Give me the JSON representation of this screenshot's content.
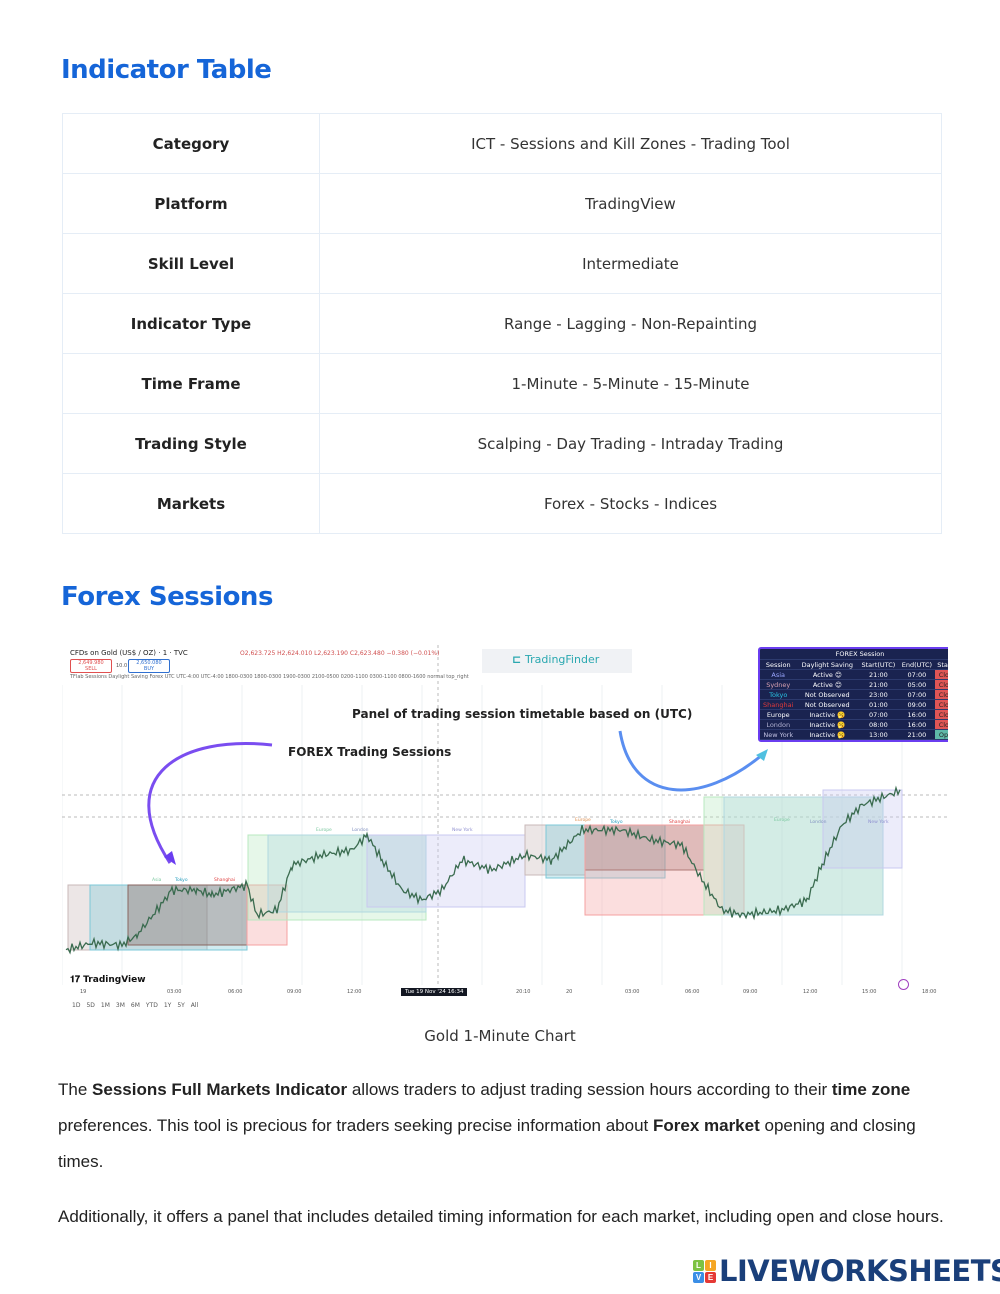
{
  "sections": {
    "indicator_table_title": "Indicator Table",
    "forex_sessions_title": "Forex Sessions"
  },
  "indicator_table": [
    {
      "label": "Category",
      "value": "ICT - Sessions and Kill Zones - Trading Tool"
    },
    {
      "label": "Platform",
      "value": "TradingView"
    },
    {
      "label": "Skill Level",
      "value": "Intermediate"
    },
    {
      "label": "Indicator Type",
      "value": "Range - Lagging - Non-Repainting"
    },
    {
      "label": "Time Frame",
      "value": "1-Minute - 5-Minute - 15-Minute"
    },
    {
      "label": "Trading Style",
      "value": "Scalping - Day Trading - Intraday Trading"
    },
    {
      "label": "Markets",
      "value": "Forex - Stocks - Indices"
    }
  ],
  "chart": {
    "symbol": "CFDs on Gold (US$ / OZ) · 1 · TVC",
    "ohlc": "O2,623.725 H2,624.010 L2,623.190 C2,623.480 −0.380 (−0.01%)",
    "sell": "2,649.980",
    "sell_label": "SELL",
    "spread": "10.0",
    "buy": "2,650.080",
    "buy_label": "BUY",
    "indicator_line": "TFlab Sessions Daylight Saving Forex UTC UTC-4:00 UTC-4:00 1800-0300 1800-0300 1900-0300 2100-0500 0200-1100 0300-1100 0800-1600 normal top_right",
    "watermark": "TradingFinder",
    "annotation_panel": "Panel of trading session timetable based on (UTC)",
    "annotation_sessions": "FOREX Trading Sessions",
    "tv_logo": "TradingView",
    "crosshair_time": "Tue 19 Nov '24  16:34",
    "x_ticks": [
      "19",
      "03:00",
      "06:00",
      "09:00",
      "12:00",
      "",
      "20:10",
      "20",
      "03:00",
      "06:00",
      "09:00",
      "12:00",
      "15:00",
      "18:00"
    ],
    "ranges": [
      "1D",
      "5D",
      "1M",
      "3M",
      "6M",
      "YTD",
      "1Y",
      "5Y",
      "All"
    ],
    "session_labels": [
      "Asia",
      "Tokyo",
      "Shanghai",
      "Europe",
      "London",
      "New York"
    ],
    "panel": {
      "title": "FOREX Session",
      "headers": [
        "Session",
        "Daylight Saving",
        "Start(UTC)",
        "End(UTC)",
        "Status"
      ],
      "rows": [
        {
          "session": "Asia",
          "dst": "Active 😊",
          "start": "21:00",
          "end": "07:00",
          "status": "Close",
          "color": "#9aa6ff"
        },
        {
          "session": "Sydney",
          "dst": "Active 😊",
          "start": "21:00",
          "end": "05:00",
          "status": "Close",
          "color": "#d6a0b0"
        },
        {
          "session": "Tokyo",
          "dst": "Not Observed",
          "start": "23:00",
          "end": "07:00",
          "status": "Close",
          "color": "#28c0e0"
        },
        {
          "session": "Shanghai",
          "dst": "Not Observed",
          "start": "01:00",
          "end": "09:00",
          "status": "Close",
          "color": "#e03a3a"
        },
        {
          "session": "Europe",
          "dst": "Inactive 🥱",
          "start": "07:00",
          "end": "16:00",
          "status": "Close",
          "color": "#ffffff"
        },
        {
          "session": "London",
          "dst": "Inactive 🥱",
          "start": "08:00",
          "end": "16:00",
          "status": "Close",
          "color": "#b0b0d0"
        },
        {
          "session": "New York",
          "dst": "Inactive 🥱",
          "start": "13:00",
          "end": "21:00",
          "status": "Open",
          "color": "#c0c0e0"
        }
      ],
      "close_color": "#e05555",
      "open_color": "#5fb8a8"
    }
  },
  "caption": "Gold 1-Minute Chart",
  "paragraph1": {
    "t1": "The ",
    "b1": "Sessions Full Markets Indicator",
    "t2": " allows traders to adjust trading session hours according to their ",
    "b2": "time zone",
    "t3": " preferences. This tool is precious for traders seeking precise information about ",
    "b3": "Forex market",
    "t4": " opening and closing times."
  },
  "paragraph2": "Additionally, it offers a panel that includes detailed timing information for each market, including open and close hours.",
  "logo": {
    "text": "LIVEWORKSHEETS",
    "tiles": [
      "L",
      "I",
      "V",
      "E"
    ]
  },
  "colors": {
    "heading": "#1565d8",
    "logo": "#1a3f7a",
    "arrow": "#6a3df0"
  }
}
